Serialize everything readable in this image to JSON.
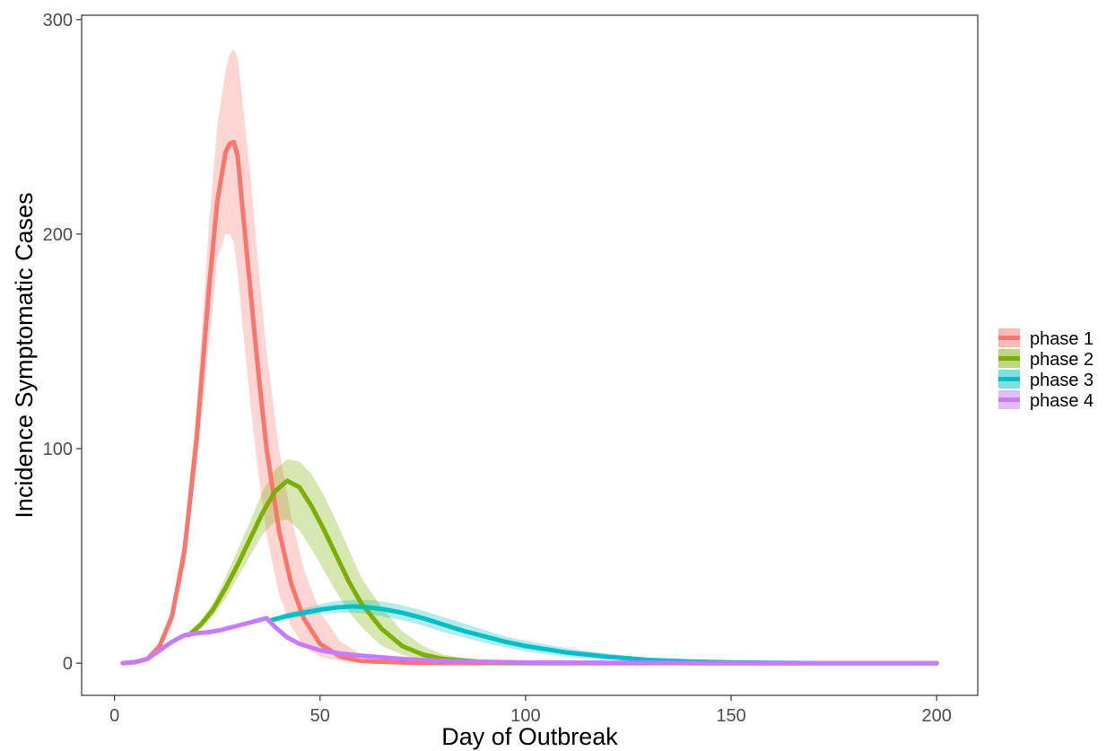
{
  "chart_data": {
    "type": "line",
    "title": "",
    "xlabel": "Day of Outbreak",
    "ylabel": "Incidence Symptomatic Cases",
    "xlim": [
      -8,
      210
    ],
    "ylim": [
      -15,
      302
    ],
    "x_ticks": [
      0,
      50,
      100,
      150,
      200
    ],
    "y_ticks": [
      0,
      100,
      200,
      300
    ],
    "grid": false,
    "legend_position": "right",
    "series": [
      {
        "name": "phase 1",
        "color": "#F8766D",
        "band_color": "#F8766D",
        "x": [
          2,
          5,
          8,
          11,
          14,
          17,
          20,
          23,
          25,
          27,
          28,
          29,
          30,
          31,
          33,
          35,
          37,
          40,
          43,
          46,
          50,
          55,
          60,
          70,
          80,
          100,
          150,
          200
        ],
        "y": [
          0,
          0.5,
          2,
          8,
          22,
          52,
          105,
          175,
          215,
          238,
          242,
          243,
          236,
          215,
          175,
          135,
          100,
          62,
          37,
          21,
          9,
          3,
          1,
          0.3,
          0.1,
          0,
          0,
          0
        ],
        "lower": [
          0,
          0.5,
          2,
          7,
          18,
          45,
          92,
          150,
          188,
          200,
          200,
          196,
          182,
          160,
          122,
          88,
          60,
          32,
          17,
          8,
          3,
          1,
          0.2,
          0,
          0,
          0,
          0,
          0
        ],
        "upper": [
          0,
          0.5,
          2,
          9,
          26,
          60,
          120,
          205,
          250,
          276,
          284,
          286,
          282,
          265,
          228,
          185,
          145,
          100,
          68,
          44,
          24,
          10,
          4,
          1,
          0.3,
          0,
          0,
          0
        ]
      },
      {
        "name": "phase 2",
        "color": "#7CAE00",
        "band_color": "#7CAE00",
        "x": [
          18,
          21,
          24,
          27,
          30,
          33,
          36,
          39,
          42,
          45,
          48,
          51,
          54,
          57,
          60,
          65,
          70,
          75,
          80,
          90,
          100,
          150,
          200
        ],
        "y": [
          13,
          18,
          25,
          35,
          46,
          58,
          70,
          80,
          85,
          82,
          73,
          62,
          50,
          38,
          28,
          16,
          8,
          4,
          2,
          0.5,
          0.1,
          0,
          0
        ],
        "lower": [
          12,
          16,
          22,
          30,
          40,
          50,
          60,
          66,
          67,
          62,
          53,
          43,
          33,
          24,
          17,
          8,
          4,
          1.5,
          0.5,
          0.1,
          0,
          0,
          0
        ],
        "upper": [
          14,
          20,
          28,
          40,
          53,
          66,
          80,
          90,
          95,
          94,
          88,
          78,
          66,
          53,
          40,
          26,
          15,
          8,
          4,
          1,
          0.3,
          0,
          0
        ]
      },
      {
        "name": "phase 3",
        "color": "#00BFC4",
        "band_color": "#00BFC4",
        "x": [
          38,
          42,
          46,
          50,
          54,
          58,
          62,
          66,
          70,
          75,
          80,
          85,
          90,
          95,
          100,
          110,
          120,
          130,
          140,
          150,
          170
        ],
        "y": [
          20,
          22,
          23.5,
          25,
          26,
          26.5,
          26,
          25,
          23.5,
          21,
          18,
          15,
          12.5,
          10,
          8,
          5,
          3,
          1.5,
          0.8,
          0.4,
          0
        ],
        "lower": [
          19,
          20.5,
          22,
          23,
          23.5,
          23.5,
          23,
          21.5,
          20,
          17.5,
          14.5,
          12,
          9.5,
          7.5,
          5.5,
          3,
          1.7,
          0.8,
          0.4,
          0.1,
          0
        ],
        "upper": [
          21,
          23.5,
          25.5,
          27.5,
          29,
          29.5,
          29.5,
          28.5,
          27,
          24.5,
          21.5,
          18.5,
          15.5,
          12.5,
          10.5,
          7,
          4.5,
          2.5,
          1.3,
          0.7,
          0.2
        ]
      },
      {
        "name": "phase 4",
        "color": "#C77CFF",
        "band_color": "#C77CFF",
        "x": [
          2,
          5,
          8,
          11,
          14,
          17,
          20,
          23,
          26,
          29,
          32,
          35,
          37,
          39,
          42,
          45,
          50,
          55,
          60,
          70,
          80,
          100,
          150,
          200
        ],
        "y": [
          0,
          0.5,
          2,
          6,
          10,
          13,
          14,
          14.5,
          15.5,
          17,
          18.5,
          20,
          21,
          17,
          12,
          9,
          6,
          4.5,
          3.5,
          2,
          1,
          0.3,
          0,
          0
        ],
        "lower": [
          0,
          0.5,
          2,
          6,
          10,
          13,
          14,
          14.5,
          15.5,
          17,
          18.5,
          20,
          20.5,
          16,
          11,
          8,
          5,
          3.5,
          2.5,
          1.5,
          0.5,
          0.1,
          0,
          0
        ],
        "upper": [
          0,
          0.5,
          2,
          6,
          10,
          13,
          14,
          14.5,
          15.5,
          17,
          18.5,
          20,
          21.5,
          18,
          13,
          10,
          7,
          5.5,
          4.5,
          2.5,
          1.5,
          0.5,
          0,
          0
        ]
      }
    ]
  }
}
